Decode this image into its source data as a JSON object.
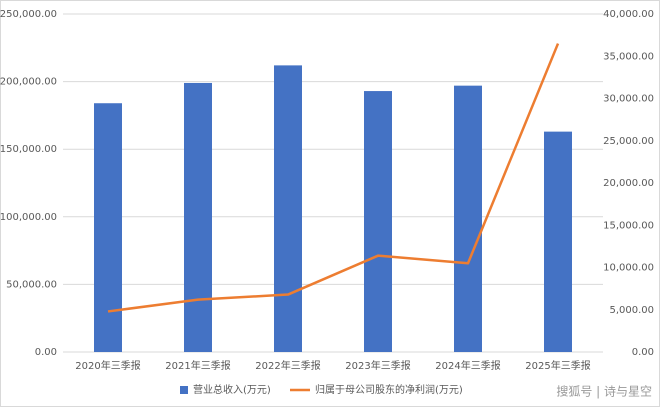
{
  "chart_data": {
    "type": "bar_line",
    "categories": [
      "2020年三季报",
      "2021年三季报",
      "2022年三季报",
      "2023年三季报",
      "2024年三季报",
      "2025年三季报"
    ],
    "series": [
      {
        "name": "营业总收入(万元)",
        "type": "bar",
        "color": "#4472c4",
        "values": [
          184000,
          199000,
          212000,
          193000,
          197000,
          163000
        ]
      },
      {
        "name": "归属于母公司股东的净利润(万元)",
        "type": "line",
        "axis": "y2",
        "color": "#ed7d31",
        "values": [
          4800,
          6200,
          6800,
          11400,
          10500,
          36500
        ]
      }
    ],
    "ylim": [
      0,
      250000
    ],
    "yticks": [
      {
        "value": 0,
        "label": "0.00"
      },
      {
        "value": 50000,
        "label": "50,000.00"
      },
      {
        "value": 100000,
        "label": "100,000.00"
      },
      {
        "value": 150000,
        "label": "150,000.00"
      },
      {
        "value": 200000,
        "label": "200,000.00"
      },
      {
        "value": 250000,
        "label": "250,000.00"
      }
    ],
    "y2lim": [
      0,
      40000
    ],
    "y2ticks": [
      {
        "value": 0,
        "label": "0.00"
      },
      {
        "value": 5000,
        "label": "5,000.00"
      },
      {
        "value": 10000,
        "label": "10,000.00"
      },
      {
        "value": 15000,
        "label": "15,000.00"
      },
      {
        "value": 20000,
        "label": "20,000.00"
      },
      {
        "value": 25000,
        "label": "25,000.00"
      },
      {
        "value": 30000,
        "label": "30,000.00"
      },
      {
        "value": 35000,
        "label": "35,000.00"
      },
      {
        "value": 40000,
        "label": "40,000.00"
      }
    ],
    "grid": true,
    "legend": "bottom",
    "watermark": "搜狐号 | 诗与星空"
  }
}
